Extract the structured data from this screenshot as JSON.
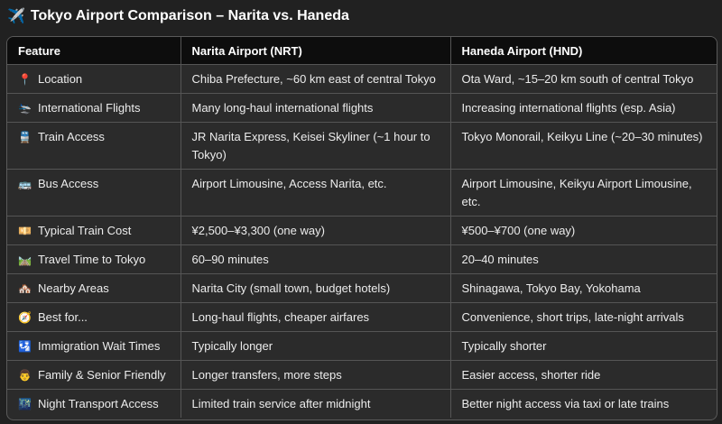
{
  "title": {
    "icon": "✈️",
    "text": "Tokyo Airport Comparison – Narita vs. Haneda"
  },
  "table": {
    "headers": [
      "Feature",
      "Narita Airport (NRT)",
      "Haneda Airport (HND)"
    ],
    "rows": [
      {
        "icon": "📍",
        "feature": "Location",
        "narita": "Chiba Prefecture, ~60 km east of central Tokyo",
        "haneda": "Ota Ward, ~15–20 km south of central Tokyo"
      },
      {
        "icon": "🛬",
        "feature": "International Flights",
        "narita": "Many long-haul international flights",
        "haneda": "Increasing international flights (esp. Asia)"
      },
      {
        "icon": "🚆",
        "feature": "Train Access",
        "narita": "JR Narita Express, Keisei Skyliner (~1 hour to Tokyo)",
        "haneda": "Tokyo Monorail, Keikyu Line (~20–30 minutes)"
      },
      {
        "icon": "🚌",
        "feature": "Bus Access",
        "narita": "Airport Limousine, Access Narita, etc.",
        "haneda": "Airport Limousine, Keikyu Airport Limousine, etc."
      },
      {
        "icon": "💴",
        "feature": "Typical Train Cost",
        "narita": "¥2,500–¥3,300 (one way)",
        "haneda": "¥500–¥700 (one way)"
      },
      {
        "icon": "🛤️",
        "feature": "Travel Time to Tokyo",
        "narita": "60–90 minutes",
        "haneda": "20–40 minutes"
      },
      {
        "icon": "🏘️",
        "feature": "Nearby Areas",
        "narita": "Narita City (small town, budget hotels)",
        "haneda": "Shinagawa, Tokyo Bay, Yokohama"
      },
      {
        "icon": "🧭",
        "feature": "Best for...",
        "narita": "Long-haul flights, cheaper airfares",
        "haneda": "Convenience, short trips, late-night arrivals"
      },
      {
        "icon": "🛂",
        "feature": "Immigration Wait Times",
        "narita": "Typically longer",
        "haneda": "Typically shorter"
      },
      {
        "icon": "👨",
        "feature": "Family & Senior Friendly",
        "narita": "Longer transfers, more steps",
        "haneda": "Easier access, shorter ride"
      },
      {
        "icon": "🌃",
        "feature": "Night Transport Access",
        "narita": "Limited train service after midnight",
        "haneda": "Better night access via taxi or late trains"
      }
    ]
  }
}
